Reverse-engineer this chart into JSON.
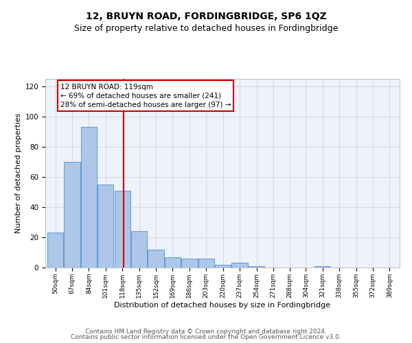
{
  "title": "12, BRUYN ROAD, FORDINGBRIDGE, SP6 1QZ",
  "subtitle": "Size of property relative to detached houses in Fordingbridge",
  "xlabel": "Distribution of detached houses by size in Fordingbridge",
  "ylabel": "Number of detached properties",
  "bins": [
    50,
    67,
    84,
    101,
    118,
    135,
    152,
    169,
    186,
    203,
    220,
    237,
    254,
    271,
    288,
    304,
    321,
    338,
    355,
    372,
    389
  ],
  "counts": [
    23,
    70,
    93,
    55,
    51,
    24,
    12,
    7,
    6,
    6,
    2,
    3,
    1,
    0,
    0,
    0,
    1,
    0,
    0,
    0,
    0
  ],
  "bar_color": "#aec6e8",
  "bar_edge_color": "#5b9bd5",
  "vline_x": 119,
  "vline_color": "#cc0000",
  "annotation_text": "12 BRUYN ROAD: 119sqm\n← 69% of detached houses are smaller (241)\n28% of semi-detached houses are larger (97) →",
  "annotation_box_color": "#cc0000",
  "ylim": [
    0,
    125
  ],
  "yticks": [
    0,
    20,
    40,
    60,
    80,
    100,
    120
  ],
  "tick_labels": [
    "50sqm",
    "67sqm",
    "84sqm",
    "101sqm",
    "118sqm",
    "135sqm",
    "152sqm",
    "169sqm",
    "186sqm",
    "203sqm",
    "220sqm",
    "237sqm",
    "254sqm",
    "271sqm",
    "288sqm",
    "304sqm",
    "321sqm",
    "338sqm",
    "355sqm",
    "372sqm",
    "389sqm"
  ],
  "footer_line1": "Contains HM Land Registry data © Crown copyright and database right 2024.",
  "footer_line2": "Contains public sector information licensed under the Open Government Licence v3.0.",
  "background_color": "#eef2fb",
  "grid_color": "#cccccc",
  "title_fontsize": 10,
  "subtitle_fontsize": 9,
  "xlabel_fontsize": 8,
  "ylabel_fontsize": 8,
  "annotation_fontsize": 7.5,
  "footer_fontsize": 6.5,
  "bin_width": 17
}
